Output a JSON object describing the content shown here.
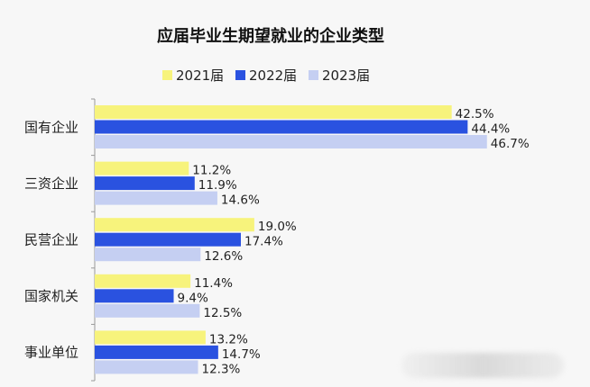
{
  "chart_data": {
    "type": "bar",
    "orientation": "horizontal",
    "title": "应届毕业生期望就业的企业类型",
    "categories": [
      "国有企业",
      "三资企业",
      "民营企业",
      "国家机关",
      "事业单位"
    ],
    "series": [
      {
        "name": "2021届",
        "color": "#f7f37c",
        "values": [
          42.5,
          11.2,
          19.0,
          11.4,
          13.2
        ]
      },
      {
        "name": "2022届",
        "color": "#2a52e0",
        "values": [
          44.4,
          11.9,
          17.4,
          9.4,
          14.7
        ]
      },
      {
        "name": "2023届",
        "color": "#c5cff2",
        "values": [
          46.7,
          14.6,
          12.6,
          12.5,
          12.3
        ]
      }
    ],
    "value_suffix": "%",
    "xlim": [
      0,
      50
    ],
    "legend_position": "top-center",
    "grid": false
  }
}
